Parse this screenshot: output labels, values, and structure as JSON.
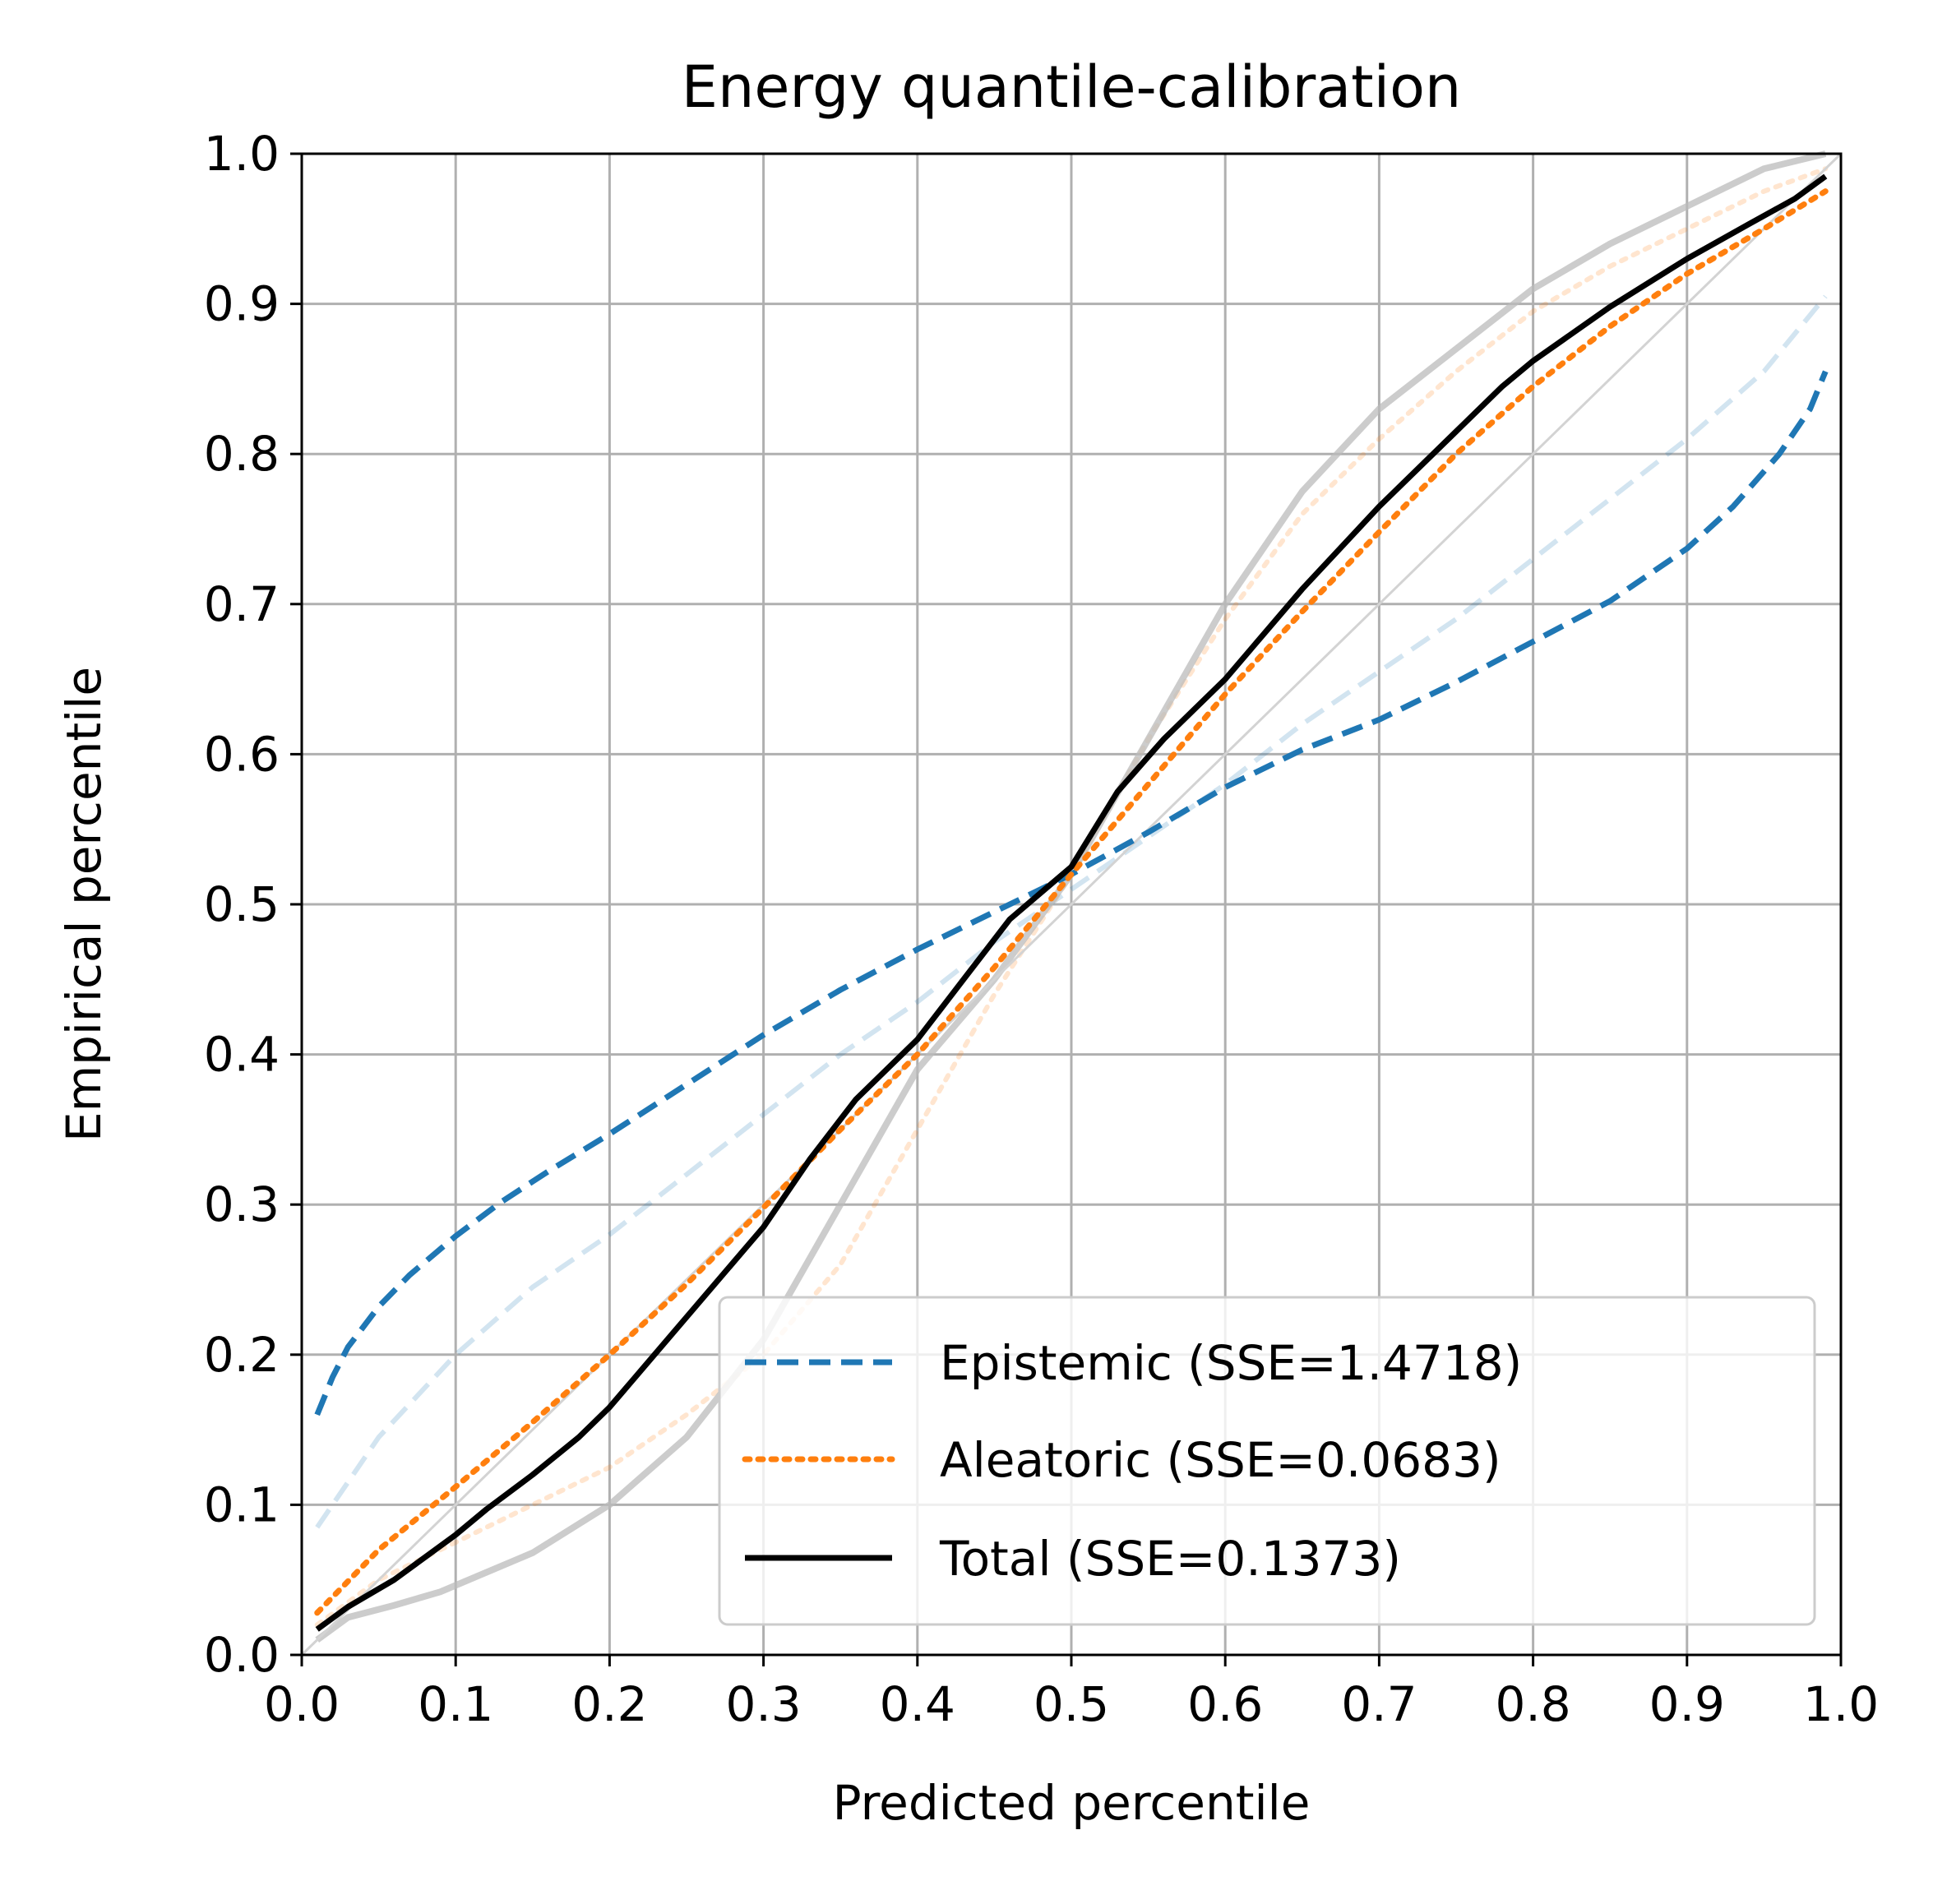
{
  "chart_data": {
    "type": "line",
    "title": "Energy quantile-calibration",
    "xlabel": "Predicted percentile",
    "ylabel": "Empirical percentile",
    "xlim": [
      0.0,
      1.0
    ],
    "ylim": [
      0.0,
      1.0
    ],
    "grid": true,
    "legend_position": "lower-right",
    "x_ticks": [
      "0.0",
      "0.1",
      "0.2",
      "0.3",
      "0.4",
      "0.5",
      "0.6",
      "0.7",
      "0.8",
      "0.9",
      "1.0"
    ],
    "y_ticks": [
      "0.0",
      "0.1",
      "0.2",
      "0.3",
      "0.4",
      "0.5",
      "0.6",
      "0.7",
      "0.8",
      "0.9",
      "1.0"
    ],
    "series": [
      {
        "name": "Epistemic (SSE=1.4718)",
        "style": "dashed",
        "color": "#1f77b4",
        "x": [
          0.01,
          0.02,
          0.03,
          0.05,
          0.07,
          0.1,
          0.13,
          0.16,
          0.2,
          0.25,
          0.3,
          0.35,
          0.4,
          0.45,
          0.5,
          0.55,
          0.6,
          0.65,
          0.7,
          0.75,
          0.8,
          0.85,
          0.9,
          0.93,
          0.96,
          0.98,
          0.99
        ],
        "y": [
          0.16,
          0.185,
          0.205,
          0.232,
          0.253,
          0.279,
          0.302,
          0.322,
          0.347,
          0.38,
          0.413,
          0.443,
          0.47,
          0.495,
          0.52,
          0.548,
          0.578,
          0.603,
          0.623,
          0.648,
          0.675,
          0.702,
          0.737,
          0.765,
          0.8,
          0.83,
          0.855
        ]
      },
      {
        "name": "Aleatoric (SSE=0.0683)",
        "style": "dotted",
        "color": "#ff7f0e",
        "x": [
          0.01,
          0.05,
          0.1,
          0.15,
          0.2,
          0.25,
          0.3,
          0.35,
          0.4,
          0.45,
          0.5,
          0.55,
          0.6,
          0.65,
          0.7,
          0.75,
          0.8,
          0.85,
          0.9,
          0.95,
          0.99
        ],
        "y": [
          0.028,
          0.07,
          0.112,
          0.155,
          0.2,
          0.247,
          0.298,
          0.35,
          0.4,
          0.458,
          0.52,
          0.58,
          0.64,
          0.695,
          0.748,
          0.8,
          0.845,
          0.885,
          0.92,
          0.95,
          0.975
        ]
      },
      {
        "name": "Total (SSE=0.1373)",
        "style": "solid",
        "color": "#000000",
        "x": [
          0.01,
          0.03,
          0.06,
          0.08,
          0.1,
          0.12,
          0.15,
          0.18,
          0.2,
          0.25,
          0.3,
          0.33,
          0.36,
          0.4,
          0.43,
          0.46,
          0.5,
          0.53,
          0.56,
          0.58,
          0.6,
          0.65,
          0.7,
          0.75,
          0.78,
          0.8,
          0.85,
          0.9,
          0.94,
          0.97,
          0.99
        ],
        "y": [
          0.017,
          0.032,
          0.05,
          0.065,
          0.08,
          0.097,
          0.12,
          0.145,
          0.165,
          0.225,
          0.285,
          0.33,
          0.37,
          0.41,
          0.45,
          0.49,
          0.525,
          0.575,
          0.61,
          0.63,
          0.65,
          0.71,
          0.765,
          0.815,
          0.845,
          0.862,
          0.898,
          0.93,
          0.953,
          0.97,
          0.985
        ]
      }
    ],
    "faint_series": [
      {
        "color": "#1f77b4",
        "style": "dashed",
        "x": [
          0.01,
          0.05,
          0.1,
          0.15,
          0.2,
          0.25,
          0.3,
          0.35,
          0.4,
          0.45,
          0.5,
          0.55,
          0.6,
          0.65,
          0.7,
          0.75,
          0.8,
          0.85,
          0.9,
          0.95,
          0.99
        ],
        "y": [
          0.085,
          0.145,
          0.2,
          0.245,
          0.28,
          0.32,
          0.36,
          0.4,
          0.435,
          0.475,
          0.51,
          0.545,
          0.58,
          0.62,
          0.655,
          0.69,
          0.73,
          0.77,
          0.81,
          0.855,
          0.905
        ]
      },
      {
        "color": "#ff7f0e",
        "style": "dotted",
        "x": [
          0.01,
          0.05,
          0.1,
          0.15,
          0.2,
          0.25,
          0.3,
          0.35,
          0.4,
          0.45,
          0.5,
          0.55,
          0.6,
          0.65,
          0.7,
          0.75,
          0.8,
          0.85,
          0.9,
          0.95,
          0.99
        ],
        "y": [
          0.02,
          0.05,
          0.075,
          0.1,
          0.125,
          0.16,
          0.2,
          0.26,
          0.35,
          0.44,
          0.52,
          0.61,
          0.69,
          0.76,
          0.81,
          0.855,
          0.895,
          0.925,
          0.95,
          0.975,
          0.99
        ]
      },
      {
        "color": "#bbbbbb",
        "style": "solid",
        "x": [
          0.01,
          0.03,
          0.06,
          0.09,
          0.12,
          0.15,
          0.2,
          0.25,
          0.3,
          0.35,
          0.4,
          0.45,
          0.5,
          0.55,
          0.6,
          0.65,
          0.7,
          0.75,
          0.8,
          0.85,
          0.9,
          0.95,
          0.99
        ],
        "y": [
          0.01,
          0.025,
          0.033,
          0.042,
          0.055,
          0.068,
          0.1,
          0.145,
          0.21,
          0.3,
          0.39,
          0.45,
          0.52,
          0.61,
          0.7,
          0.775,
          0.83,
          0.87,
          0.91,
          0.94,
          0.965,
          0.99,
          1.0
        ]
      },
      {
        "color": "#d3d3d3",
        "style": "solid",
        "x": [
          0.0,
          1.0
        ],
        "y": [
          0.0,
          1.0
        ]
      }
    ]
  }
}
